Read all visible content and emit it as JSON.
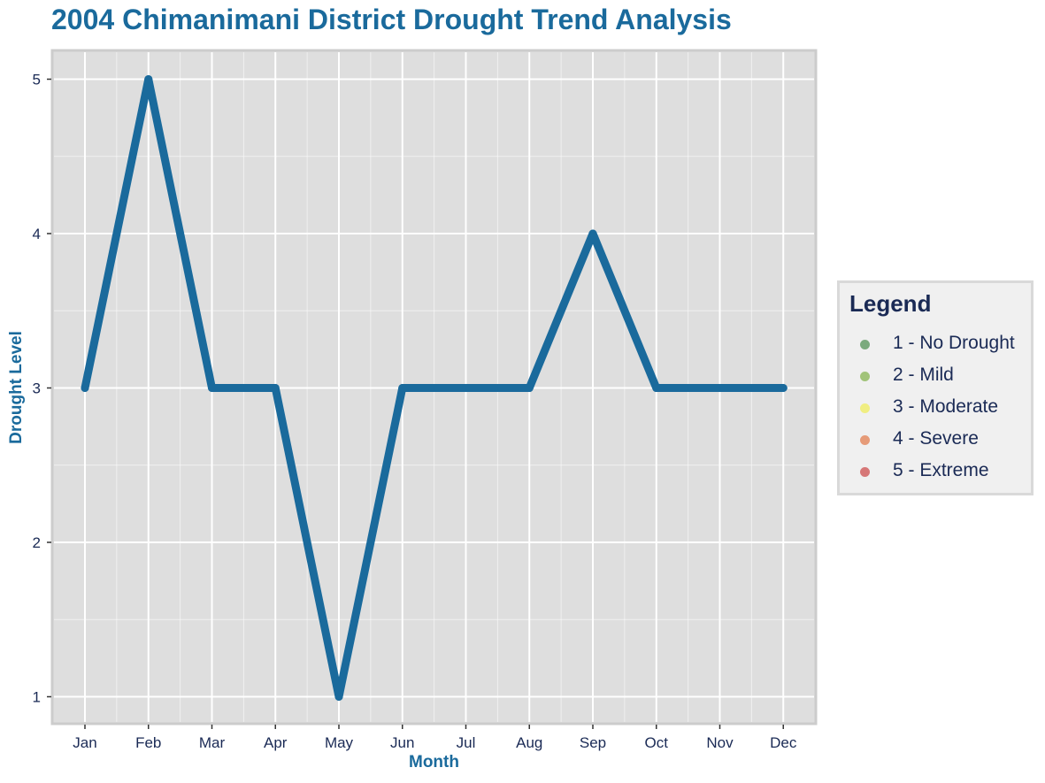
{
  "chart_data": {
    "type": "line",
    "title": "2004 Chimanimani District Drought Trend Analysis",
    "xlabel": "Month",
    "ylabel": "Drought Level",
    "categories": [
      "Jan",
      "Feb",
      "Mar",
      "Apr",
      "May",
      "Jun",
      "Jul",
      "Aug",
      "Sep",
      "Oct",
      "Nov",
      "Dec"
    ],
    "series": [
      {
        "values": [
          3,
          5,
          3,
          3,
          1,
          3,
          3,
          3,
          4,
          3,
          3,
          3
        ],
        "color": "#1a6a9c"
      }
    ],
    "ylim": [
      1,
      5
    ],
    "yticks": [
      "1",
      "2",
      "3",
      "4",
      "5"
    ],
    "grid": true,
    "legend": {
      "title": "Legend",
      "placement": "right",
      "items": [
        {
          "label": "1 - No Drought",
          "color": "#2e7d32"
        },
        {
          "label": "2 - Mild",
          "color": "#6ea62b"
        },
        {
          "label": "3 - Moderate",
          "color": "#f0ee3a"
        },
        {
          "label": "4 - Severe",
          "color": "#e0632a"
        },
        {
          "label": "5 - Extreme",
          "color": "#c62828"
        }
      ]
    },
    "colors": {
      "panel_background": "#dedede",
      "grid_line": "#ffffff",
      "title_text": "#1a6a9c",
      "tick_text": "#1a2a55"
    }
  }
}
